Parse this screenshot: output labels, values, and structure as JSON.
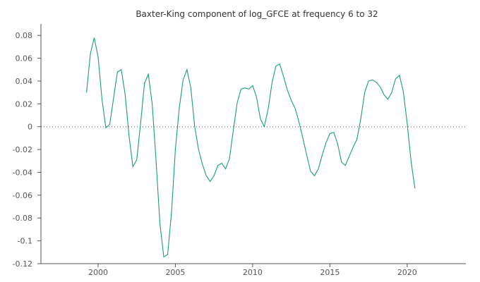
{
  "chart_data": {
    "type": "line",
    "title": "Baxter-King component of log_GFCE at frequency 6 to 32",
    "xlabel": "",
    "ylabel": "",
    "xlim": [
      1996.3,
      2023.8
    ],
    "ylim": [
      -0.12,
      0.09
    ],
    "xticks": [
      2000,
      2005,
      2010,
      2015,
      2020
    ],
    "yticks": [
      0.08,
      0.06,
      0.04,
      0.02,
      0,
      -0.02,
      -0.04,
      -0.06,
      -0.08,
      -0.1,
      -0.12
    ],
    "ytick_labels": [
      "0.08",
      "0.06",
      "0.04",
      "0.02",
      "0",
      "-0.02",
      "-0.04",
      "-0.06",
      "-0.08",
      "-0.1",
      "-0.12"
    ],
    "xtick_labels": [
      "2000",
      "2005",
      "2010",
      "2015",
      "2020"
    ],
    "zero_line": "dotted",
    "grid": false,
    "series_color": "#1a9e77",
    "series": [
      {
        "x": [
          1999.25,
          1999.5,
          1999.75,
          2000.0,
          2000.25,
          2000.5,
          2000.75,
          2001.0,
          2001.25,
          2001.5,
          2001.75,
          2002.0,
          2002.25,
          2002.5,
          2002.75,
          2003.0,
          2003.25,
          2003.5,
          2003.75,
          2004.0,
          2004.25,
          2004.5,
          2004.75,
          2005.0,
          2005.25,
          2005.5,
          2005.75,
          2006.0,
          2006.25,
          2006.5,
          2006.75,
          2007.0,
          2007.25,
          2007.5,
          2007.75,
          2008.0,
          2008.25,
          2008.5,
          2008.75,
          2009.0,
          2009.25,
          2009.5,
          2009.75,
          2010.0,
          2010.25,
          2010.5,
          2010.75,
          2011.0,
          2011.25,
          2011.5,
          2011.75,
          2012.0,
          2012.25,
          2012.5,
          2012.75,
          2013.0,
          2013.25,
          2013.5,
          2013.75,
          2014.0,
          2014.25,
          2014.5,
          2014.75,
          2015.0,
          2015.25,
          2015.5,
          2015.75,
          2016.0,
          2016.25,
          2016.5,
          2016.75,
          2017.0,
          2017.25,
          2017.5,
          2017.75,
          2018.0,
          2018.25,
          2018.5,
          2018.75,
          2019.0,
          2019.25,
          2019.5,
          2019.75,
          2020.0,
          2020.25,
          2020.5
        ],
        "y": [
          0.03,
          0.064,
          0.078,
          0.061,
          0.024,
          -0.001,
          0.002,
          0.025,
          0.048,
          0.05,
          0.028,
          -0.008,
          -0.035,
          -0.029,
          0.003,
          0.038,
          0.046,
          0.02,
          -0.03,
          -0.085,
          -0.114,
          -0.112,
          -0.075,
          -0.02,
          0.016,
          0.041,
          0.05,
          0.034,
          0.0,
          -0.02,
          -0.033,
          -0.043,
          -0.048,
          -0.043,
          -0.034,
          -0.032,
          -0.037,
          -0.028,
          -0.003,
          0.021,
          0.033,
          0.034,
          0.033,
          0.036,
          0.026,
          0.007,
          0.0,
          0.015,
          0.038,
          0.053,
          0.055,
          0.044,
          0.032,
          0.023,
          0.016,
          0.004,
          -0.01,
          -0.025,
          -0.039,
          -0.043,
          -0.037,
          -0.025,
          -0.014,
          -0.006,
          -0.005,
          -0.015,
          -0.031,
          -0.034,
          -0.026,
          -0.018,
          -0.011,
          0.007,
          0.03,
          0.04,
          0.041,
          0.039,
          0.035,
          0.028,
          0.024,
          0.03,
          0.042,
          0.045,
          0.031,
          0.003,
          -0.03,
          -0.054
        ]
      }
    ]
  }
}
